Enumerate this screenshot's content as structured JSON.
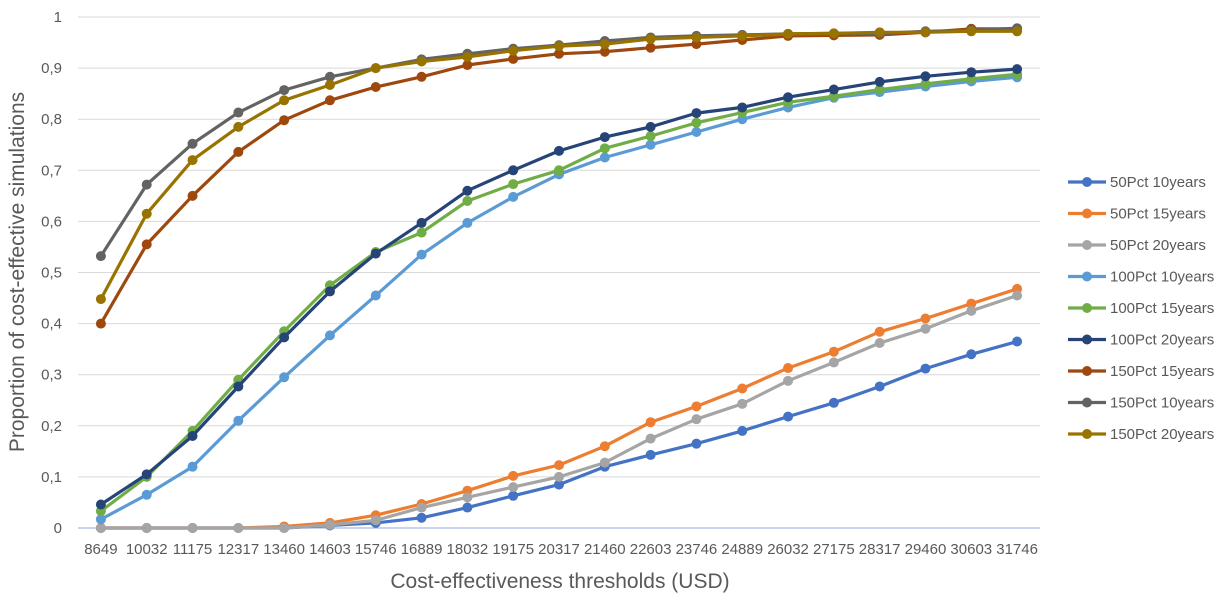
{
  "chart_data": {
    "type": "line",
    "title": "",
    "xlabel": "Cost-effectiveness thresholds (USD)",
    "ylabel": "Proportion of cost-effective simulations",
    "ylim": [
      0,
      1
    ],
    "yticks": [
      "0",
      "0,1",
      "0,2",
      "0,3",
      "0,4",
      "0,5",
      "0,6",
      "0,7",
      "0,8",
      "0,9",
      "1"
    ],
    "grid": "horizontal",
    "legend_position": "right",
    "categories": [
      "8649",
      "10032",
      "11175",
      "12317",
      "13460",
      "14603",
      "15746",
      "16889",
      "18032",
      "19175",
      "20317",
      "21460",
      "22603",
      "23746",
      "24889",
      "26032",
      "27175",
      "28317",
      "29460",
      "30603",
      "31746"
    ],
    "series": [
      {
        "name": "50Pct 10years",
        "color": "#4472C4",
        "values": [
          0,
          0,
          0,
          0,
          0,
          0.005,
          0.01,
          0.02,
          0.04,
          0.063,
          0.085,
          0.12,
          0.143,
          0.165,
          0.19,
          0.218,
          0.245,
          0.277,
          0.312,
          0.34,
          0.365
        ]
      },
      {
        "name": "50Pct 15years",
        "color": "#ED7D31",
        "values": [
          0,
          0,
          0,
          0,
          0.003,
          0.01,
          0.025,
          0.047,
          0.073,
          0.102,
          0.123,
          0.16,
          0.207,
          0.238,
          0.273,
          0.313,
          0.345,
          0.384,
          0.41,
          0.439,
          0.468
        ]
      },
      {
        "name": "50Pct 20years",
        "color": "#A5A5A5",
        "values": [
          0,
          0,
          0,
          0,
          0,
          0.006,
          0.015,
          0.04,
          0.06,
          0.08,
          0.1,
          0.128,
          0.175,
          0.213,
          0.243,
          0.288,
          0.324,
          0.362,
          0.39,
          0.425,
          0.455
        ]
      },
      {
        "name": "100Pct 10years",
        "color": "#5B9BD5",
        "values": [
          0.017,
          0.065,
          0.12,
          0.21,
          0.295,
          0.377,
          0.455,
          0.535,
          0.597,
          0.648,
          0.692,
          0.725,
          0.75,
          0.775,
          0.8,
          0.823,
          0.842,
          0.853,
          0.864,
          0.874,
          0.882
        ]
      },
      {
        "name": "100Pct 15years",
        "color": "#70AD47",
        "values": [
          0.033,
          0.1,
          0.19,
          0.29,
          0.385,
          0.475,
          0.54,
          0.578,
          0.64,
          0.673,
          0.7,
          0.743,
          0.767,
          0.793,
          0.813,
          0.833,
          0.845,
          0.858,
          0.869,
          0.879,
          0.888
        ]
      },
      {
        "name": "100Pct 20years",
        "color": "#264478",
        "values": [
          0.046,
          0.105,
          0.18,
          0.277,
          0.373,
          0.463,
          0.537,
          0.597,
          0.66,
          0.7,
          0.738,
          0.765,
          0.785,
          0.812,
          0.823,
          0.843,
          0.858,
          0.873,
          0.884,
          0.892,
          0.898
        ]
      },
      {
        "name": "150Pct 15years",
        "color": "#9E480E",
        "values": [
          0.4,
          0.555,
          0.65,
          0.736,
          0.798,
          0.837,
          0.863,
          0.883,
          0.906,
          0.918,
          0.928,
          0.932,
          0.94,
          0.947,
          0.955,
          0.963,
          0.964,
          0.965,
          0.97,
          0.977,
          0.977
        ]
      },
      {
        "name": "150Pct 10years",
        "color": "#636363",
        "values": [
          0.532,
          0.672,
          0.752,
          0.813,
          0.857,
          0.883,
          0.9,
          0.917,
          0.928,
          0.938,
          0.945,
          0.953,
          0.96,
          0.963,
          0.965,
          0.967,
          0.968,
          0.968,
          0.972,
          0.974,
          0.978
        ]
      },
      {
        "name": "150Pct 20years",
        "color": "#997300",
        "values": [
          0.448,
          0.615,
          0.72,
          0.785,
          0.837,
          0.867,
          0.9,
          0.913,
          0.922,
          0.934,
          0.943,
          0.947,
          0.957,
          0.96,
          0.963,
          0.967,
          0.968,
          0.97,
          0.97,
          0.972,
          0.972
        ]
      }
    ]
  }
}
